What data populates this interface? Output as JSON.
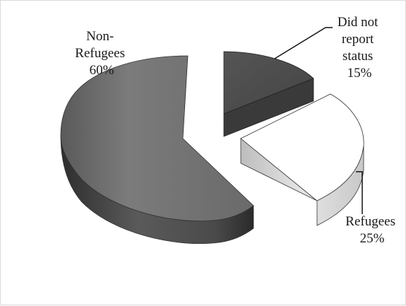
{
  "chart_data": {
    "type": "pie",
    "title": "",
    "three_d": true,
    "exploded": true,
    "slices": [
      {
        "label_lines": [
          "Non-",
          "Refugees",
          "60%"
        ],
        "category": "Non-Refugees",
        "value": 60,
        "color": "#6e6e6e"
      },
      {
        "label_lines": [
          "Did not",
          "report",
          "status",
          "15%"
        ],
        "category": "Did not report status",
        "value": 15,
        "color": "#4a4a4a"
      },
      {
        "label_lines": [
          "Refugees",
          "25%"
        ],
        "category": "Refugees",
        "value": 25,
        "color": "#ffffff"
      }
    ],
    "legend": "none"
  }
}
